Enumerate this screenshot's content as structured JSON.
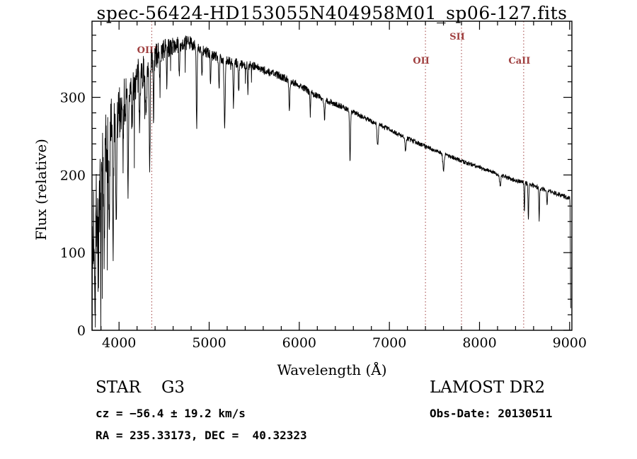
{
  "chart_data": {
    "type": "line",
    "title": "spec-56424-HD153055N404958M01_sp06-127.fits",
    "xlabel": "Wavelength (Å)",
    "ylabel": "Flux (relative)",
    "xlim": [
      3700,
      9025
    ],
    "ylim": [
      0,
      398
    ],
    "xticks": [
      4000,
      5000,
      6000,
      7000,
      8000,
      9000
    ],
    "yticks": [
      0,
      100,
      200,
      300
    ],
    "x_minor_step": 200,
    "y_minor_step": 20,
    "grid": false,
    "line_color": "#000000",
    "marker_color": "#a04040",
    "marker_lines": [
      {
        "label": "OIII",
        "wavelength": 4363,
        "label_dy": 45
      },
      {
        "label": "OII",
        "wavelength": 7400,
        "label_dy": 60
      },
      {
        "label": "SII",
        "wavelength": 7800,
        "label_dy": 26
      },
      {
        "label": "CaII",
        "wavelength": 8490,
        "label_dy": 60
      }
    ],
    "sample_step": 2.5,
    "wl_start": 3702,
    "wl_end": 9012,
    "noise_seed": 7,
    "continuum": [
      [
        3700,
        5
      ],
      [
        3706,
        70
      ],
      [
        3716,
        135
      ],
      [
        3730,
        150
      ],
      [
        3760,
        162
      ],
      [
        3800,
        190
      ],
      [
        3850,
        230
      ],
      [
        3900,
        255
      ],
      [
        3950,
        266
      ],
      [
        4000,
        280
      ],
      [
        4060,
        295
      ],
      [
        4120,
        305
      ],
      [
        4180,
        318
      ],
      [
        4240,
        330
      ],
      [
        4300,
        336
      ],
      [
        4360,
        344
      ],
      [
        4420,
        354
      ],
      [
        4500,
        361
      ],
      [
        4600,
        366
      ],
      [
        4700,
        369
      ],
      [
        4800,
        370
      ],
      [
        4900,
        362
      ],
      [
        5000,
        356
      ],
      [
        5100,
        351
      ],
      [
        5200,
        347
      ],
      [
        5300,
        344
      ],
      [
        5400,
        342
      ],
      [
        5500,
        340
      ],
      [
        5600,
        335
      ],
      [
        5700,
        331
      ],
      [
        5800,
        327
      ],
      [
        5900,
        321
      ],
      [
        6000,
        316
      ],
      [
        6100,
        308
      ],
      [
        6200,
        302
      ],
      [
        6300,
        296
      ],
      [
        6400,
        291
      ],
      [
        6500,
        287
      ],
      [
        6600,
        281
      ],
      [
        6700,
        275
      ],
      [
        6800,
        269
      ],
      [
        6900,
        264
      ],
      [
        7000,
        259
      ],
      [
        7100,
        252
      ],
      [
        7200,
        247
      ],
      [
        7300,
        242
      ],
      [
        7400,
        237
      ],
      [
        7500,
        232
      ],
      [
        7600,
        228
      ],
      [
        7700,
        223
      ],
      [
        7800,
        218
      ],
      [
        7900,
        214
      ],
      [
        8000,
        210
      ],
      [
        8100,
        206
      ],
      [
        8200,
        201
      ],
      [
        8300,
        197
      ],
      [
        8400,
        193
      ],
      [
        8500,
        190
      ],
      [
        8600,
        186
      ],
      [
        8700,
        182
      ],
      [
        8800,
        178
      ],
      [
        8900,
        174
      ],
      [
        9000,
        170
      ],
      [
        9006,
        160
      ],
      [
        9012,
        28
      ]
    ],
    "noise_amp": [
      [
        3700,
        85
      ],
      [
        3750,
        75
      ],
      [
        3800,
        60
      ],
      [
        3850,
        52
      ],
      [
        3900,
        45
      ],
      [
        3950,
        40
      ],
      [
        4000,
        34
      ],
      [
        4100,
        29
      ],
      [
        4200,
        26
      ],
      [
        4300,
        22
      ],
      [
        4400,
        18
      ],
      [
        4500,
        14
      ],
      [
        4600,
        11
      ],
      [
        4700,
        10
      ],
      [
        4800,
        9
      ],
      [
        4900,
        8
      ],
      [
        5000,
        7.5
      ],
      [
        5200,
        6.5
      ],
      [
        5400,
        6
      ],
      [
        5600,
        5.5
      ],
      [
        5800,
        5
      ],
      [
        6000,
        4.5
      ],
      [
        6300,
        4
      ],
      [
        6600,
        3.5
      ],
      [
        7000,
        3
      ],
      [
        7500,
        2.8
      ],
      [
        8000,
        2.8
      ],
      [
        8500,
        3
      ],
      [
        9000,
        3
      ]
    ],
    "absorption_lines": [
      [
        3735,
        90,
        5
      ],
      [
        3770,
        80,
        5
      ],
      [
        3798,
        85,
        5
      ],
      [
        3835,
        100,
        5
      ],
      [
        3890,
        120,
        6
      ],
      [
        3933,
        150,
        6
      ],
      [
        3968,
        140,
        6
      ],
      [
        4045,
        60,
        4
      ],
      [
        4101,
        125,
        5
      ],
      [
        4144,
        50,
        4
      ],
      [
        4227,
        65,
        4
      ],
      [
        4300,
        75,
        7
      ],
      [
        4340,
        150,
        5
      ],
      [
        4383,
        70,
        4
      ],
      [
        4455,
        45,
        4
      ],
      [
        4530,
        40,
        4
      ],
      [
        4668,
        45,
        4
      ],
      [
        4861,
        100,
        5
      ],
      [
        4920,
        40,
        4
      ],
      [
        5015,
        35,
        4
      ],
      [
        5110,
        40,
        4
      ],
      [
        5172,
        85,
        6
      ],
      [
        5270,
        55,
        5
      ],
      [
        5328,
        40,
        4
      ],
      [
        5430,
        35,
        4
      ],
      [
        5890,
        40,
        5
      ],
      [
        6122,
        30,
        4
      ],
      [
        6280,
        25,
        5
      ],
      [
        6563,
        65,
        5
      ],
      [
        6870,
        28,
        7
      ],
      [
        7180,
        18,
        6
      ],
      [
        7600,
        22,
        8
      ],
      [
        8230,
        15,
        6
      ],
      [
        8498,
        35,
        4
      ],
      [
        8542,
        48,
        4
      ],
      [
        8662,
        42,
        4
      ],
      [
        8750,
        20,
        4
      ]
    ]
  },
  "footer": {
    "class_label": "STAR    G3",
    "survey_label": "LAMOST DR2",
    "cz_line": "cz = −56.4 ± 19.2 km/s",
    "obsdate_line": "Obs-Date: 20130511",
    "radec_line": "RA = 235.33173, DEC =  40.32323"
  }
}
